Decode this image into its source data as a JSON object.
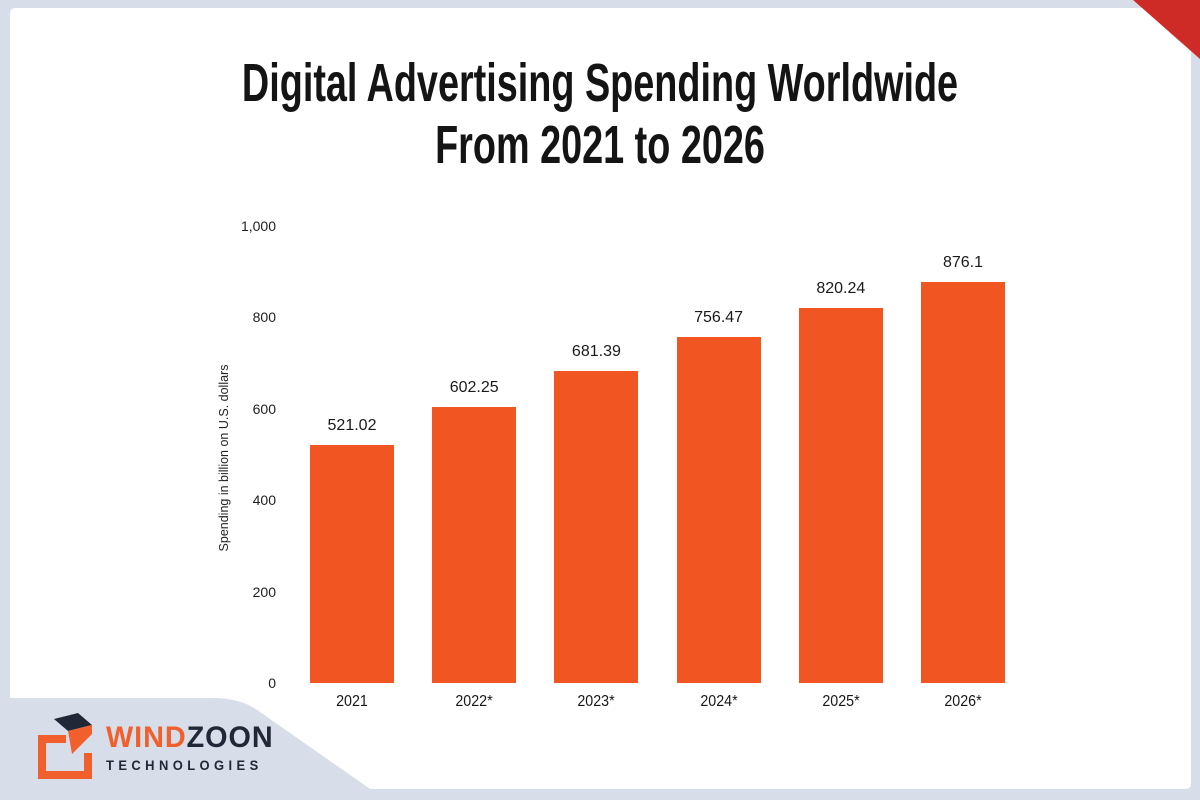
{
  "title": {
    "line1": "Digital Advertising Spending Worldwide",
    "line2": "From 2021 to 2026"
  },
  "chart_data": {
    "type": "bar",
    "title": "Digital Advertising Spending Worldwide From 2021 to 2026",
    "categories": [
      "2021",
      "2022*",
      "2023*",
      "2024*",
      "2025*",
      "2026*"
    ],
    "values": [
      521.02,
      602.25,
      681.39,
      756.47,
      820.24,
      876.1
    ],
    "value_labels": [
      "521.02",
      "602.25",
      "681.39",
      "756.47",
      "820.24",
      "876.1"
    ],
    "xlabel": "",
    "ylabel": "Spending in billion on U.S. dollars",
    "ylim": [
      0,
      1000
    ],
    "yticks": [
      0,
      200,
      400,
      600,
      800,
      1000
    ],
    "ytick_labels": [
      "0",
      "200",
      "400",
      "600",
      "800",
      "1,000"
    ],
    "grid": false,
    "legend": false,
    "bar_color": "#f05522"
  },
  "branding": {
    "name_part_orange": "WIND",
    "name_part_dark": "ZOON",
    "subtitle": "TECHNOLOGIES"
  },
  "colors": {
    "frame_background": "#d8dee9",
    "card_background": "#ffffff",
    "bar": "#f05522",
    "corner_triangle": "#ce2b26",
    "logo_orange": "#f15f2c",
    "logo_dark": "#202837",
    "text": "#141414"
  }
}
